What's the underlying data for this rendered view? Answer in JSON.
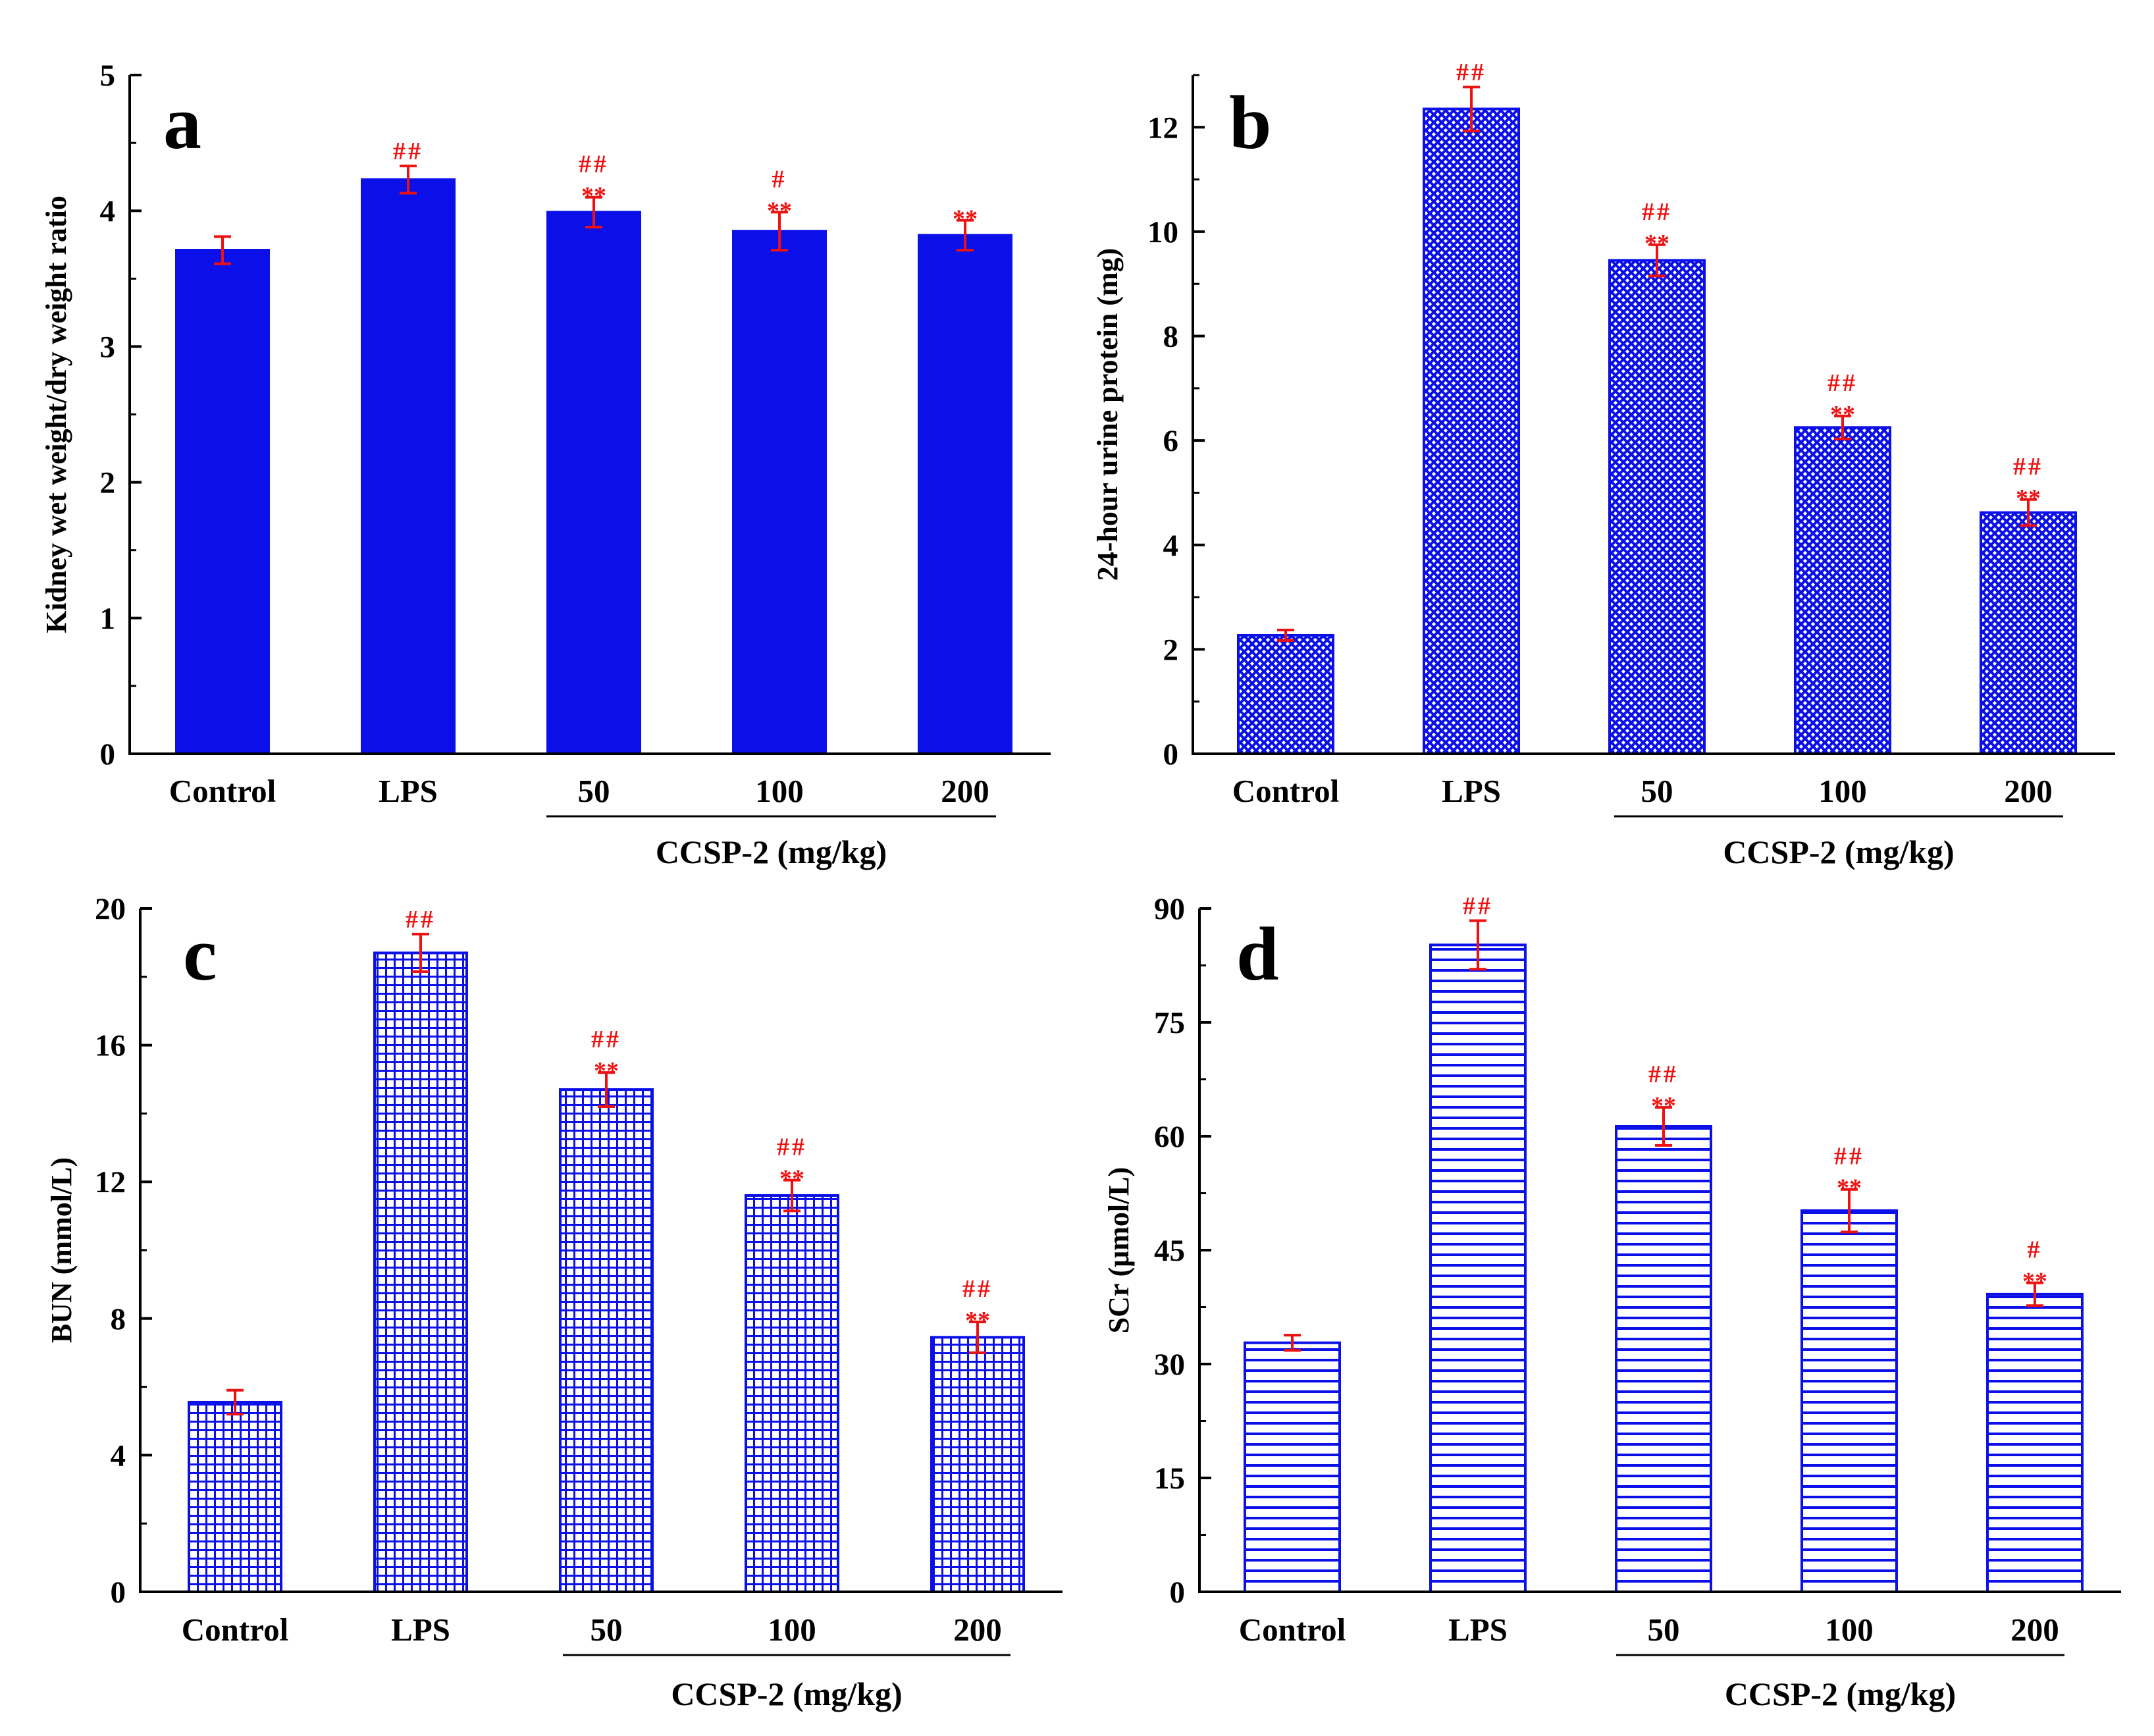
{
  "colors": {
    "bar": "#0b10e8",
    "error": "#ee1111",
    "sig": "#ee1111",
    "axis": "#000000"
  },
  "chart_data": [
    {
      "type": "bar",
      "panel_label": "a",
      "pattern": "solid",
      "title": "",
      "ylabel": "Kidney wet weight/dry weight ratio",
      "xlabel": "",
      "ylim": [
        0,
        5
      ],
      "yticks": [
        0,
        1,
        2,
        3,
        4,
        5
      ],
      "categories": [
        "Control",
        "LPS",
        "50",
        "100",
        "200"
      ],
      "group_label": "CCSP-2 (mg/kg)",
      "values": [
        3.71,
        4.23,
        3.99,
        3.85,
        3.82
      ],
      "errors": [
        0.1,
        0.1,
        0.11,
        0.14,
        0.11
      ],
      "significance": [
        {
          "hash": "",
          "star": ""
        },
        {
          "hash": "##",
          "star": ""
        },
        {
          "hash": "##",
          "star": "**"
        },
        {
          "hash": "#",
          "star": "**"
        },
        {
          "hash": "",
          "star": "**"
        }
      ]
    },
    {
      "type": "bar",
      "panel_label": "b",
      "pattern": "crosshatch",
      "title": "",
      "ylabel": "24-hour urine protein (mg)",
      "xlabel": "",
      "ylim": [
        0,
        13
      ],
      "yticks": [
        0,
        2,
        4,
        6,
        8,
        10,
        12
      ],
      "categories": [
        "Control",
        "LPS",
        "50",
        "100",
        "200"
      ],
      "group_label": "CCSP-2 (mg/kg)",
      "values": [
        2.27,
        12.35,
        9.45,
        6.25,
        4.62
      ],
      "errors": [
        0.1,
        0.42,
        0.3,
        0.22,
        0.25
      ],
      "significance": [
        {
          "hash": "",
          "star": ""
        },
        {
          "hash": "##",
          "star": ""
        },
        {
          "hash": "##",
          "star": "**"
        },
        {
          "hash": "##",
          "star": "**"
        },
        {
          "hash": "##",
          "star": "**"
        }
      ]
    },
    {
      "type": "bar",
      "panel_label": "c",
      "pattern": "grid",
      "title": "",
      "ylabel": "BUN (mmol/L)",
      "xlabel": "",
      "ylim": [
        0,
        20
      ],
      "yticks": [
        0,
        4,
        8,
        12,
        16,
        20
      ],
      "categories": [
        "Control",
        "LPS",
        "50",
        "100",
        "200"
      ],
      "group_label": "CCSP-2 (mg/kg)",
      "values": [
        5.55,
        18.7,
        14.7,
        11.6,
        7.45
      ],
      "errors": [
        0.35,
        0.55,
        0.5,
        0.45,
        0.45
      ],
      "significance": [
        {
          "hash": "",
          "star": ""
        },
        {
          "hash": "##",
          "star": ""
        },
        {
          "hash": "##",
          "star": "**"
        },
        {
          "hash": "##",
          "star": "**"
        },
        {
          "hash": "##",
          "star": "**"
        }
      ]
    },
    {
      "type": "bar",
      "panel_label": "d",
      "pattern": "horizontal-lines",
      "title": "",
      "ylabel": "SCr (μmol/L)",
      "xlabel": "",
      "ylim": [
        0,
        90
      ],
      "yticks": [
        0,
        15,
        30,
        45,
        60,
        75,
        90
      ],
      "categories": [
        "Control",
        "LPS",
        "50",
        "100",
        "200"
      ],
      "group_label": "CCSP-2 (mg/kg)",
      "values": [
        32.8,
        85.2,
        61.3,
        50.2,
        39.2
      ],
      "errors": [
        1.0,
        3.2,
        2.5,
        2.8,
        1.5
      ],
      "significance": [
        {
          "hash": "",
          "star": ""
        },
        {
          "hash": "##",
          "star": ""
        },
        {
          "hash": "##",
          "star": "**"
        },
        {
          "hash": "##",
          "star": "**"
        },
        {
          "hash": "#",
          "star": "**"
        }
      ]
    }
  ]
}
